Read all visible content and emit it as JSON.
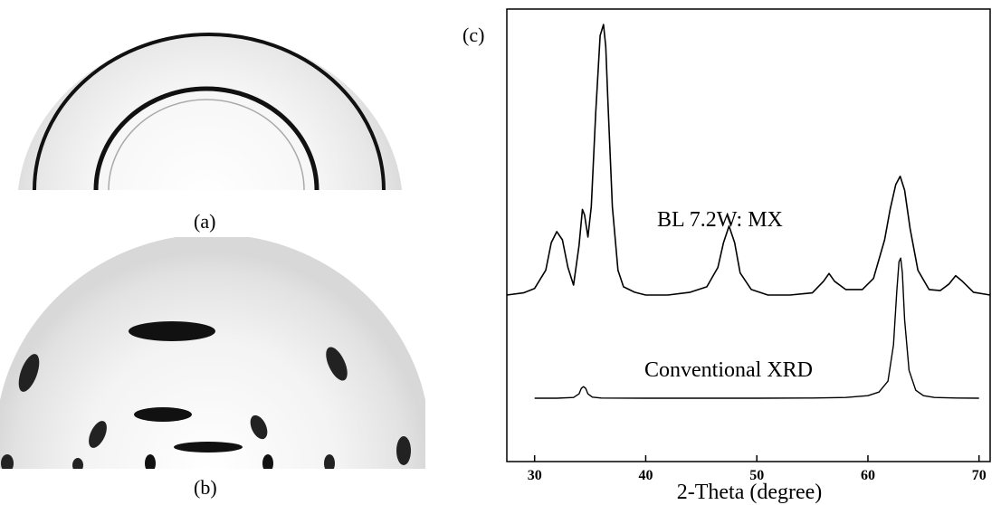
{
  "panels": {
    "a": {
      "caption": "(a)"
    },
    "b": {
      "caption": "(b)"
    },
    "c": {
      "caption": "(c)"
    }
  },
  "chart_data": {
    "type": "line",
    "xlabel": "2-Theta (degree)",
    "ylabel": "",
    "xlim": [
      27.5,
      71
    ],
    "xticks": [
      30,
      40,
      50,
      60,
      70
    ],
    "y_ticks_labeled": false,
    "grid": false,
    "series": [
      {
        "name": "BL 7.2W: MX",
        "color": "#000000",
        "x": [
          27.5,
          29,
          30,
          31,
          31.5,
          32,
          32.5,
          33,
          33.5,
          34,
          34.3,
          34.5,
          34.8,
          35.1,
          35.5,
          35.9,
          36.2,
          36.4,
          36.6,
          37,
          37.5,
          38,
          39,
          40,
          42,
          44,
          45.5,
          46.5,
          47,
          47.5,
          48,
          48.5,
          49.5,
          51,
          53,
          55,
          56,
          56.5,
          57,
          58,
          59.5,
          60.5,
          61.5,
          62,
          62.5,
          62.9,
          63.3,
          63.8,
          64.5,
          65.5,
          66.5,
          67.3,
          67.9,
          68.5,
          69.5,
          71
        ],
        "values": [
          1,
          1.4,
          2.2,
          5.5,
          10.5,
          12.5,
          11,
          6,
          2.8,
          10,
          16.5,
          15.5,
          11.5,
          17,
          34,
          48,
          50,
          46,
          36,
          17,
          5.5,
          2.5,
          1.5,
          1,
          1,
          1.5,
          2.5,
          6,
          10.5,
          13.5,
          10.5,
          5,
          2,
          1,
          1,
          1.4,
          3.5,
          4.9,
          3.5,
          2,
          2,
          4,
          11,
          16.5,
          21,
          22.5,
          20,
          13,
          5.5,
          2,
          1.8,
          3,
          4.5,
          3.5,
          1.5,
          1
        ]
      },
      {
        "name": "Conventional XRD",
        "color": "#000000",
        "x": [
          30,
          32,
          33.5,
          34,
          34.2,
          34.4,
          34.6,
          34.8,
          35.2,
          36,
          40,
          45,
          50,
          55,
          58,
          60,
          61,
          61.8,
          62.3,
          62.6,
          62.8,
          62.95,
          63.1,
          63.3,
          63.7,
          64.3,
          65,
          66,
          68,
          70
        ],
        "values": [
          0.3,
          0.3,
          0.5,
          1.5,
          3,
          3.5,
          3,
          1.5,
          0.6,
          0.35,
          0.3,
          0.3,
          0.3,
          0.35,
          0.5,
          1,
          2,
          5,
          15,
          30,
          38,
          39,
          35,
          22,
          8,
          2.5,
          1,
          0.5,
          0.35,
          0.3
        ]
      }
    ]
  }
}
